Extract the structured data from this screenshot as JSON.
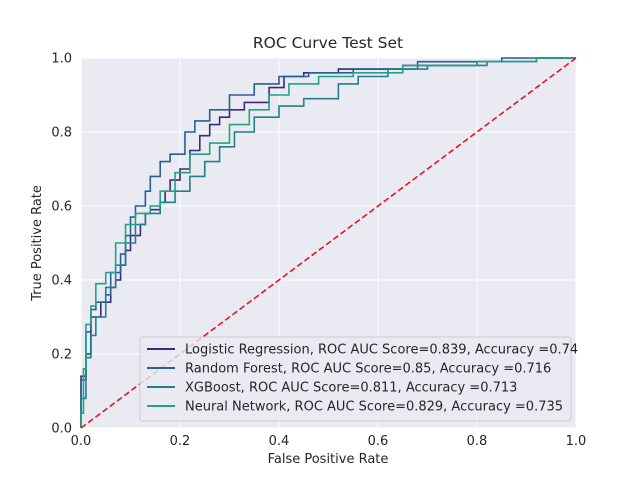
{
  "chart_data": {
    "type": "line",
    "title": "ROC Curve Test Set",
    "xlabel": "False Positive Rate",
    "ylabel": "True Positive Rate",
    "xlim": [
      0.0,
      1.0
    ],
    "ylim": [
      0.0,
      1.0
    ],
    "x_ticks": [
      "0.0",
      "0.2",
      "0.4",
      "0.6",
      "0.8",
      "1.0"
    ],
    "y_ticks": [
      "0.0",
      "0.2",
      "0.4",
      "0.6",
      "0.8",
      "1.0"
    ],
    "grid": true,
    "background": "#eaeaf2",
    "legend_position": "lower-right",
    "series": [
      {
        "name": "Logistic Regression, ROC AUC Score=0.839, Accuracy =0.74",
        "color": "#3a2c7a",
        "points": [
          [
            0.0,
            0.0
          ],
          [
            0.0,
            0.14
          ],
          [
            0.01,
            0.14
          ],
          [
            0.01,
            0.2
          ],
          [
            0.02,
            0.2
          ],
          [
            0.02,
            0.3
          ],
          [
            0.04,
            0.3
          ],
          [
            0.04,
            0.34
          ],
          [
            0.06,
            0.34
          ],
          [
            0.06,
            0.38
          ],
          [
            0.07,
            0.38
          ],
          [
            0.07,
            0.4
          ],
          [
            0.08,
            0.4
          ],
          [
            0.08,
            0.44
          ],
          [
            0.09,
            0.44
          ],
          [
            0.09,
            0.48
          ],
          [
            0.1,
            0.48
          ],
          [
            0.1,
            0.52
          ],
          [
            0.12,
            0.52
          ],
          [
            0.12,
            0.55
          ],
          [
            0.13,
            0.55
          ],
          [
            0.13,
            0.58
          ],
          [
            0.14,
            0.58
          ],
          [
            0.14,
            0.59
          ],
          [
            0.16,
            0.59
          ],
          [
            0.16,
            0.61
          ],
          [
            0.17,
            0.61
          ],
          [
            0.17,
            0.64
          ],
          [
            0.18,
            0.64
          ],
          [
            0.18,
            0.67
          ],
          [
            0.2,
            0.67
          ],
          [
            0.2,
            0.7
          ],
          [
            0.22,
            0.7
          ],
          [
            0.22,
            0.75
          ],
          [
            0.24,
            0.75
          ],
          [
            0.24,
            0.79
          ],
          [
            0.26,
            0.79
          ],
          [
            0.26,
            0.82
          ],
          [
            0.28,
            0.82
          ],
          [
            0.28,
            0.84
          ],
          [
            0.3,
            0.84
          ],
          [
            0.3,
            0.86
          ],
          [
            0.33,
            0.86
          ],
          [
            0.33,
            0.88
          ],
          [
            0.38,
            0.88
          ],
          [
            0.38,
            0.92
          ],
          [
            0.41,
            0.92
          ],
          [
            0.41,
            0.95
          ],
          [
            0.45,
            0.95
          ],
          [
            0.45,
            0.96
          ],
          [
            0.52,
            0.96
          ],
          [
            0.52,
            0.97
          ],
          [
            0.65,
            0.97
          ],
          [
            0.65,
            0.98
          ],
          [
            0.8,
            0.98
          ],
          [
            0.8,
            0.99
          ],
          [
            0.92,
            0.99
          ],
          [
            0.92,
            1.0
          ],
          [
            1.0,
            1.0
          ]
        ]
      },
      {
        "name": "Random Forest, ROC AUC Score=0.85, Accuracy =0.716",
        "color": "#2b5f94",
        "points": [
          [
            0.0,
            0.0
          ],
          [
            0.0,
            0.13
          ],
          [
            0.01,
            0.13
          ],
          [
            0.01,
            0.26
          ],
          [
            0.02,
            0.26
          ],
          [
            0.02,
            0.32
          ],
          [
            0.03,
            0.32
          ],
          [
            0.03,
            0.34
          ],
          [
            0.05,
            0.34
          ],
          [
            0.05,
            0.36
          ],
          [
            0.06,
            0.36
          ],
          [
            0.06,
            0.42
          ],
          [
            0.08,
            0.42
          ],
          [
            0.08,
            0.47
          ],
          [
            0.09,
            0.47
          ],
          [
            0.09,
            0.52
          ],
          [
            0.1,
            0.52
          ],
          [
            0.1,
            0.57
          ],
          [
            0.11,
            0.57
          ],
          [
            0.11,
            0.6
          ],
          [
            0.13,
            0.6
          ],
          [
            0.13,
            0.64
          ],
          [
            0.14,
            0.64
          ],
          [
            0.14,
            0.68
          ],
          [
            0.16,
            0.68
          ],
          [
            0.16,
            0.72
          ],
          [
            0.18,
            0.72
          ],
          [
            0.18,
            0.74
          ],
          [
            0.21,
            0.74
          ],
          [
            0.21,
            0.8
          ],
          [
            0.23,
            0.8
          ],
          [
            0.23,
            0.83
          ],
          [
            0.26,
            0.83
          ],
          [
            0.26,
            0.86
          ],
          [
            0.3,
            0.86
          ],
          [
            0.3,
            0.9
          ],
          [
            0.35,
            0.9
          ],
          [
            0.35,
            0.93
          ],
          [
            0.4,
            0.93
          ],
          [
            0.4,
            0.95
          ],
          [
            0.46,
            0.95
          ],
          [
            0.46,
            0.96
          ],
          [
            0.55,
            0.96
          ],
          [
            0.55,
            0.97
          ],
          [
            0.68,
            0.97
          ],
          [
            0.68,
            0.99
          ],
          [
            0.85,
            0.99
          ],
          [
            0.85,
            1.0
          ],
          [
            1.0,
            1.0
          ]
        ]
      },
      {
        "name": "XGBoost, ROC AUC Score=0.811, Accuracy =0.713",
        "color": "#21808c",
        "points": [
          [
            0.0,
            0.0
          ],
          [
            0.0,
            0.08
          ],
          [
            0.01,
            0.08
          ],
          [
            0.01,
            0.19
          ],
          [
            0.02,
            0.19
          ],
          [
            0.02,
            0.25
          ],
          [
            0.03,
            0.25
          ],
          [
            0.03,
            0.3
          ],
          [
            0.05,
            0.3
          ],
          [
            0.05,
            0.38
          ],
          [
            0.07,
            0.38
          ],
          [
            0.07,
            0.44
          ],
          [
            0.09,
            0.44
          ],
          [
            0.09,
            0.5
          ],
          [
            0.11,
            0.5
          ],
          [
            0.11,
            0.55
          ],
          [
            0.13,
            0.55
          ],
          [
            0.13,
            0.58
          ],
          [
            0.16,
            0.58
          ],
          [
            0.16,
            0.61
          ],
          [
            0.19,
            0.61
          ],
          [
            0.19,
            0.64
          ],
          [
            0.22,
            0.64
          ],
          [
            0.22,
            0.68
          ],
          [
            0.25,
            0.68
          ],
          [
            0.25,
            0.72
          ],
          [
            0.28,
            0.72
          ],
          [
            0.28,
            0.76
          ],
          [
            0.31,
            0.76
          ],
          [
            0.31,
            0.8
          ],
          [
            0.35,
            0.8
          ],
          [
            0.35,
            0.84
          ],
          [
            0.4,
            0.84
          ],
          [
            0.4,
            0.87
          ],
          [
            0.45,
            0.87
          ],
          [
            0.45,
            0.89
          ],
          [
            0.52,
            0.89
          ],
          [
            0.52,
            0.93
          ],
          [
            0.56,
            0.93
          ],
          [
            0.56,
            0.95
          ],
          [
            0.62,
            0.95
          ],
          [
            0.62,
            0.97
          ],
          [
            0.7,
            0.97
          ],
          [
            0.7,
            0.98
          ],
          [
            0.82,
            0.98
          ],
          [
            0.82,
            0.99
          ],
          [
            0.92,
            0.99
          ],
          [
            0.92,
            1.0
          ],
          [
            1.0,
            1.0
          ]
        ]
      },
      {
        "name": "Neural Network, ROC AUC Score=0.829, Accuracy =0.735",
        "color": "#27a185",
        "points": [
          [
            0.0,
            0.0
          ],
          [
            0.0,
            0.04
          ],
          [
            0.005,
            0.04
          ],
          [
            0.005,
            0.16
          ],
          [
            0.01,
            0.16
          ],
          [
            0.01,
            0.28
          ],
          [
            0.02,
            0.28
          ],
          [
            0.02,
            0.33
          ],
          [
            0.03,
            0.33
          ],
          [
            0.03,
            0.39
          ],
          [
            0.05,
            0.39
          ],
          [
            0.05,
            0.42
          ],
          [
            0.07,
            0.42
          ],
          [
            0.07,
            0.5
          ],
          [
            0.09,
            0.5
          ],
          [
            0.09,
            0.55
          ],
          [
            0.11,
            0.55
          ],
          [
            0.11,
            0.58
          ],
          [
            0.14,
            0.58
          ],
          [
            0.14,
            0.6
          ],
          [
            0.16,
            0.6
          ],
          [
            0.16,
            0.64
          ],
          [
            0.19,
            0.64
          ],
          [
            0.19,
            0.69
          ],
          [
            0.22,
            0.69
          ],
          [
            0.22,
            0.74
          ],
          [
            0.26,
            0.74
          ],
          [
            0.26,
            0.77
          ],
          [
            0.3,
            0.77
          ],
          [
            0.3,
            0.82
          ],
          [
            0.34,
            0.82
          ],
          [
            0.34,
            0.86
          ],
          [
            0.38,
            0.86
          ],
          [
            0.38,
            0.9
          ],
          [
            0.42,
            0.9
          ],
          [
            0.42,
            0.93
          ],
          [
            0.48,
            0.93
          ],
          [
            0.48,
            0.95
          ],
          [
            0.55,
            0.95
          ],
          [
            0.55,
            0.96
          ],
          [
            0.65,
            0.96
          ],
          [
            0.65,
            0.98
          ],
          [
            0.8,
            0.98
          ],
          [
            0.8,
            0.99
          ],
          [
            0.92,
            0.99
          ],
          [
            0.92,
            1.0
          ],
          [
            1.0,
            1.0
          ]
        ]
      }
    ],
    "reference_line": {
      "points": [
        [
          0.0,
          0.0
        ],
        [
          1.0,
          1.0
        ]
      ],
      "color": "#e8161b",
      "style": "dashed"
    }
  }
}
